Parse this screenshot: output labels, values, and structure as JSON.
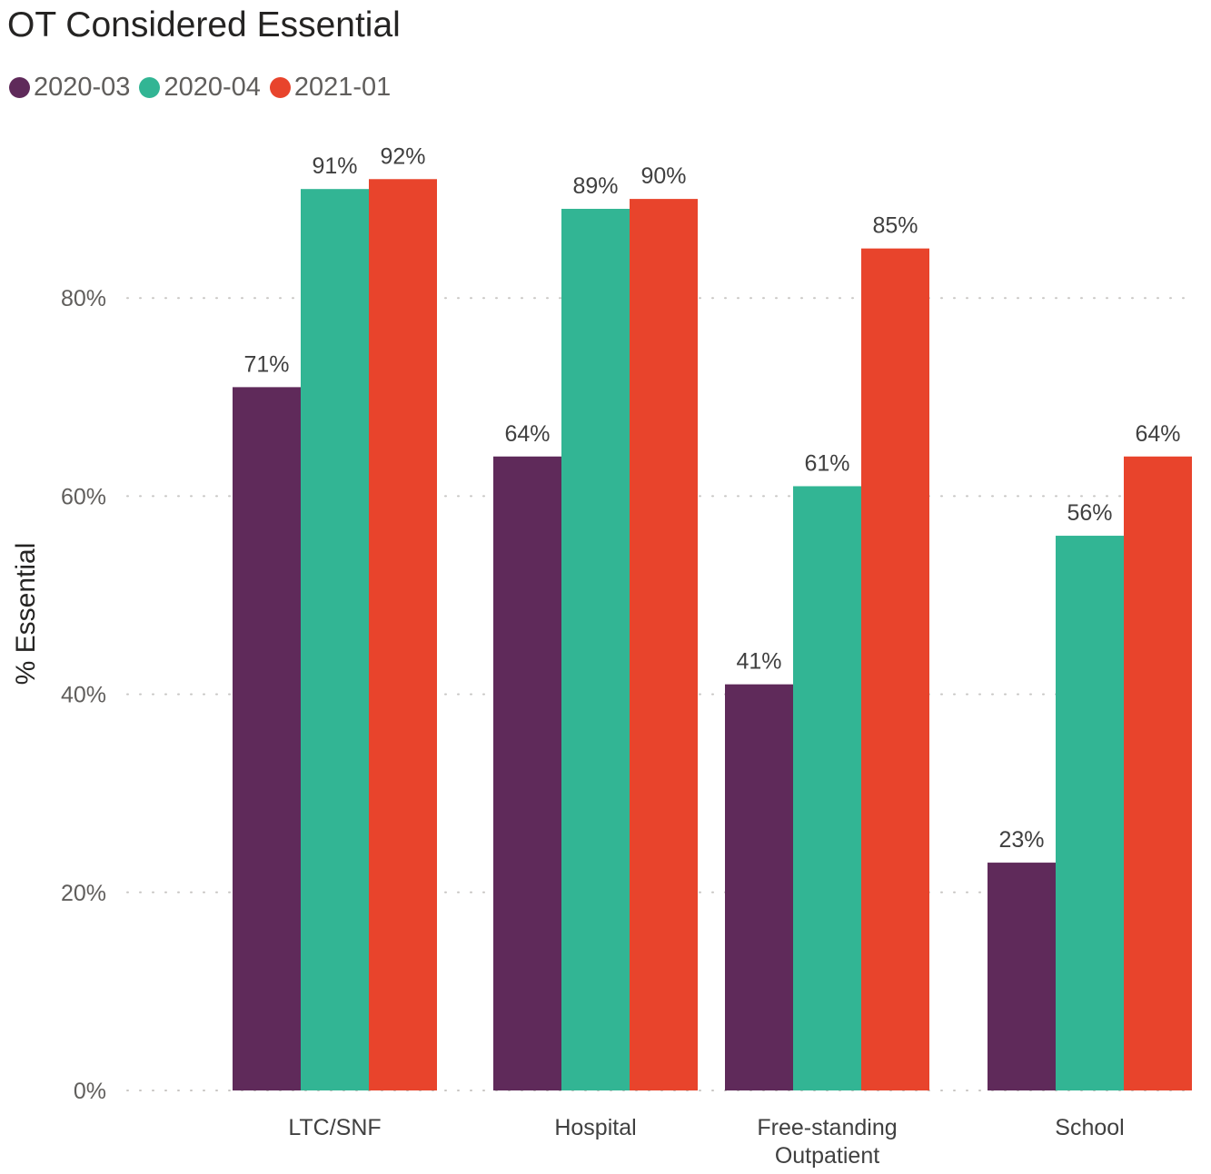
{
  "chart_data": {
    "type": "bar",
    "title": "OT Considered Essential",
    "xlabel": "",
    "ylabel": "% Essential",
    "categories": [
      "LTC/SNF",
      "Hospital",
      "Free-standing Outpatient",
      "School"
    ],
    "category_lines": [
      [
        "LTC/SNF"
      ],
      [
        "Hospital"
      ],
      [
        "Free-standing",
        "Outpatient"
      ],
      [
        "School"
      ]
    ],
    "series": [
      {
        "name": "2020-03",
        "color": "#5f2a5a",
        "values": [
          71,
          64,
          41,
          23
        ],
        "labels": [
          "71%",
          "64%",
          "41%",
          "23%"
        ]
      },
      {
        "name": "2020-04",
        "color": "#32b594",
        "values": [
          91,
          89,
          61,
          56
        ],
        "labels": [
          "91%",
          "89%",
          "61%",
          "56%"
        ]
      },
      {
        "name": "2021-01",
        "color": "#e8442c",
        "values": [
          92,
          90,
          85,
          64
        ],
        "labels": [
          "92%",
          "90%",
          "85%",
          "64%"
        ]
      }
    ],
    "ylim": [
      0,
      100
    ],
    "yticks": [
      0,
      20,
      40,
      60,
      80
    ],
    "ytick_labels": [
      "0%",
      "20%",
      "40%",
      "60%",
      "80%"
    ],
    "grid": true,
    "legend_position": "top-left"
  }
}
